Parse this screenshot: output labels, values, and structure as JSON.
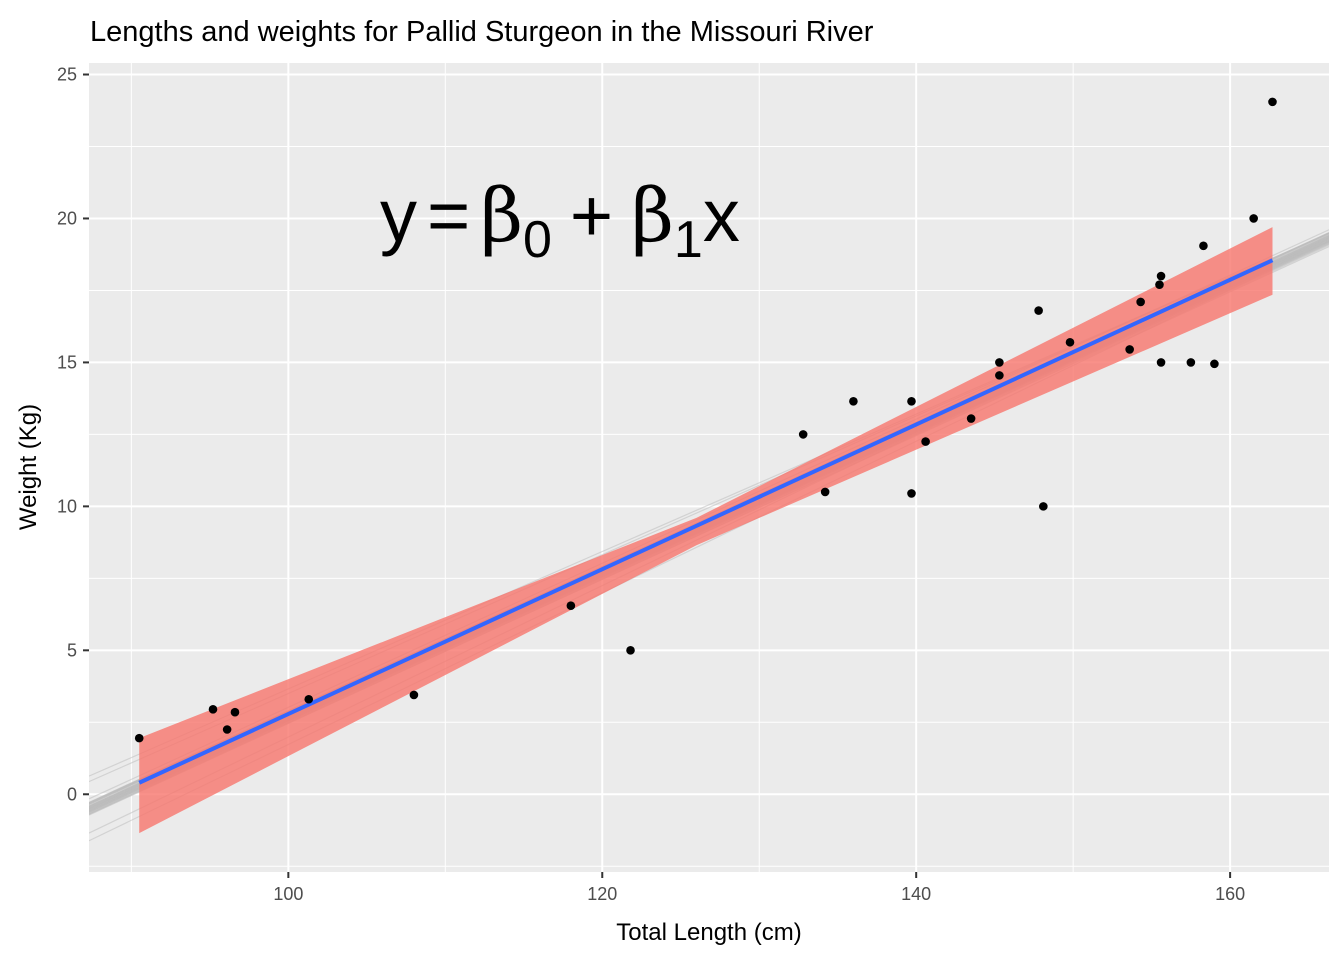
{
  "chart_data": {
    "type": "scatter",
    "title": "Lengths and weights for Pallid Sturgeon in the Missouri River",
    "xlabel": "Total Length (cm)",
    "ylabel": "Weight (Kg)",
    "xlim": [
      87.3,
      166.3
    ],
    "ylim": [
      -2.7,
      25.4
    ],
    "x_ticks": [
      100,
      120,
      140,
      160
    ],
    "y_ticks": [
      0,
      5,
      10,
      15,
      20,
      25
    ],
    "annotation": {
      "lhs": "y",
      "eq": "=",
      "beta": "β",
      "sub0": "0",
      "plus": "+",
      "sub1": "1",
      "x": "x"
    },
    "points": [
      {
        "x": 90.5,
        "y": 1.95
      },
      {
        "x": 95.2,
        "y": 2.95
      },
      {
        "x": 96.1,
        "y": 2.25
      },
      {
        "x": 96.6,
        "y": 2.85
      },
      {
        "x": 101.3,
        "y": 3.3
      },
      {
        "x": 108.0,
        "y": 3.45
      },
      {
        "x": 118.0,
        "y": 6.55
      },
      {
        "x": 121.8,
        "y": 5.0
      },
      {
        "x": 132.8,
        "y": 12.5
      },
      {
        "x": 134.2,
        "y": 10.5
      },
      {
        "x": 136.0,
        "y": 13.65
      },
      {
        "x": 139.7,
        "y": 13.65
      },
      {
        "x": 139.7,
        "y": 10.45
      },
      {
        "x": 140.6,
        "y": 12.25
      },
      {
        "x": 143.5,
        "y": 13.05
      },
      {
        "x": 145.3,
        "y": 15.0
      },
      {
        "x": 145.3,
        "y": 14.55
      },
      {
        "x": 147.8,
        "y": 16.8
      },
      {
        "x": 148.1,
        "y": 10.0
      },
      {
        "x": 149.8,
        "y": 15.7
      },
      {
        "x": 153.6,
        "y": 15.45
      },
      {
        "x": 154.3,
        "y": 17.1
      },
      {
        "x": 155.5,
        "y": 17.7
      },
      {
        "x": 155.6,
        "y": 18.0
      },
      {
        "x": 155.6,
        "y": 15.0
      },
      {
        "x": 157.5,
        "y": 15.0
      },
      {
        "x": 158.3,
        "y": 19.05
      },
      {
        "x": 159.0,
        "y": 14.95
      },
      {
        "x": 161.5,
        "y": 20.0
      },
      {
        "x": 162.7,
        "y": 24.05
      }
    ],
    "fit_line": {
      "x": [
        90.5,
        162.7
      ],
      "y": [
        0.4,
        18.55
      ],
      "color": "#3366FF"
    },
    "confidence_band": {
      "x": [
        90.5,
        126,
        162.7
      ],
      "lower": [
        -1.35,
        8.65,
        17.35
      ],
      "upper": [
        1.95,
        9.6,
        19.7
      ],
      "color": "#F8766D"
    },
    "sampled_lines": {
      "intercepts": [
        -22.35,
        -22.6,
        -22.0,
        -22.45,
        -22.5,
        -22.15,
        -22.55,
        -22.3,
        -22.4,
        -22.2,
        -22.55,
        -22.3,
        -22.4,
        -22.2,
        -22.45,
        -22.6,
        -22.1,
        -22.4,
        -22.3,
        -22.5,
        -22.2,
        -22.35,
        -22.45,
        -22.15,
        -22.6,
        -22.25,
        -22.4,
        -22.3,
        -22.5,
        -22.35,
        -22.2,
        -22.4,
        -22.45,
        -22.3,
        -22.1,
        -22.55,
        -22.35,
        -22.25,
        -22.4,
        -22.3,
        -22.5,
        -22.35,
        -22.2,
        -22.45,
        -22.3,
        -22.4,
        -22.15,
        -22.35,
        -22.55,
        -22.3,
        -22.45,
        -22.25,
        -22.4,
        -22.35,
        -22.3,
        -22.5,
        -22.4,
        -22.2,
        -22.35,
        -22.45,
        -24.6,
        -24.3,
        -20.2,
        -20.6
      ],
      "slopes": [
        0.2507,
        0.251,
        0.2502,
        0.2509,
        0.2497,
        0.2505,
        0.2515,
        0.2504,
        0.2501,
        0.2508,
        0.2505,
        0.2499,
        0.2512,
        0.2503,
        0.25,
        0.2506,
        0.2496,
        0.2509,
        0.2502,
        0.2511,
        0.2505,
        0.2498,
        0.2507,
        0.2504,
        0.2513,
        0.2501,
        0.2506,
        0.2503,
        0.2508,
        0.25,
        0.2506,
        0.2509,
        0.2502,
        0.2507,
        0.2495,
        0.2511,
        0.2504,
        0.2498,
        0.2506,
        0.2503,
        0.2509,
        0.2501,
        0.2507,
        0.2505,
        0.2502,
        0.2508,
        0.2497,
        0.2504,
        0.251,
        0.2506,
        0.2503,
        0.25,
        0.2507,
        0.2505,
        0.2502,
        0.2509,
        0.2504,
        0.2499,
        0.2506,
        0.2508,
        0.2633,
        0.2629,
        0.2386,
        0.241
      ],
      "color": "#BEBEBE"
    },
    "colors": {
      "panel_background": "#EBEBEB",
      "grid": "#FFFFFF",
      "point": "#000000"
    }
  }
}
